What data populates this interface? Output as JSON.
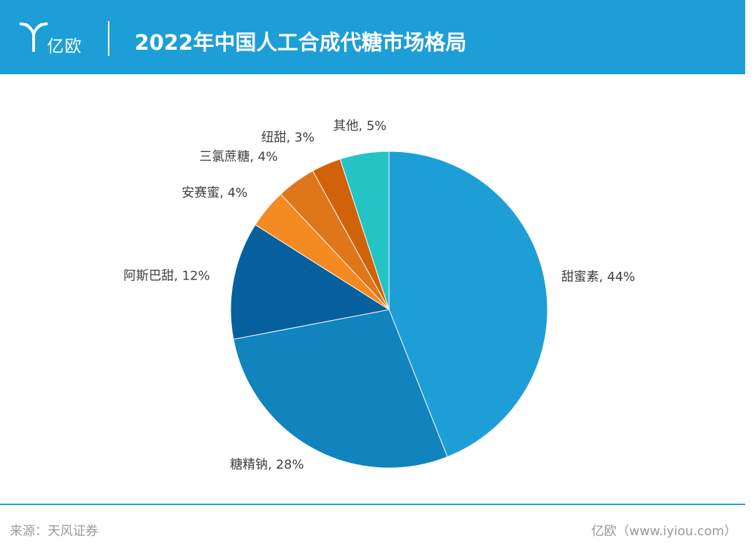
{
  "header": {
    "logo_text": "亿欧",
    "title": "2022年中国人工合成代糖市场格局",
    "background_color": "#1e9ed6"
  },
  "chart_data": {
    "type": "pie",
    "title": "2022年中国人工合成代糖市场格局",
    "categories": [
      "甜蜜素",
      "糖精钠",
      "阿斯巴甜",
      "安赛蜜",
      "三氯蔗糖",
      "纽甜",
      "其他"
    ],
    "values": [
      44,
      28,
      12,
      4,
      4,
      3,
      5
    ],
    "unit": "%",
    "labels": [
      "甜蜜素, 44%",
      "糖精钠, 28%",
      "阿斯巴甜, 12%",
      "安赛蜜, 4%",
      "三氯蔗糖, 4%",
      "纽甜, 3%",
      "其他, 5%"
    ],
    "colors": [
      "#1e9ed6",
      "#1183bd",
      "#06609e",
      "#f58a22",
      "#e0761a",
      "#d1620a",
      "#25c4c4"
    ],
    "start": "top",
    "direction": "clockwise"
  },
  "footer": {
    "source": "来源：天风证券",
    "brand": "亿欧（www.iyiou.com）"
  }
}
